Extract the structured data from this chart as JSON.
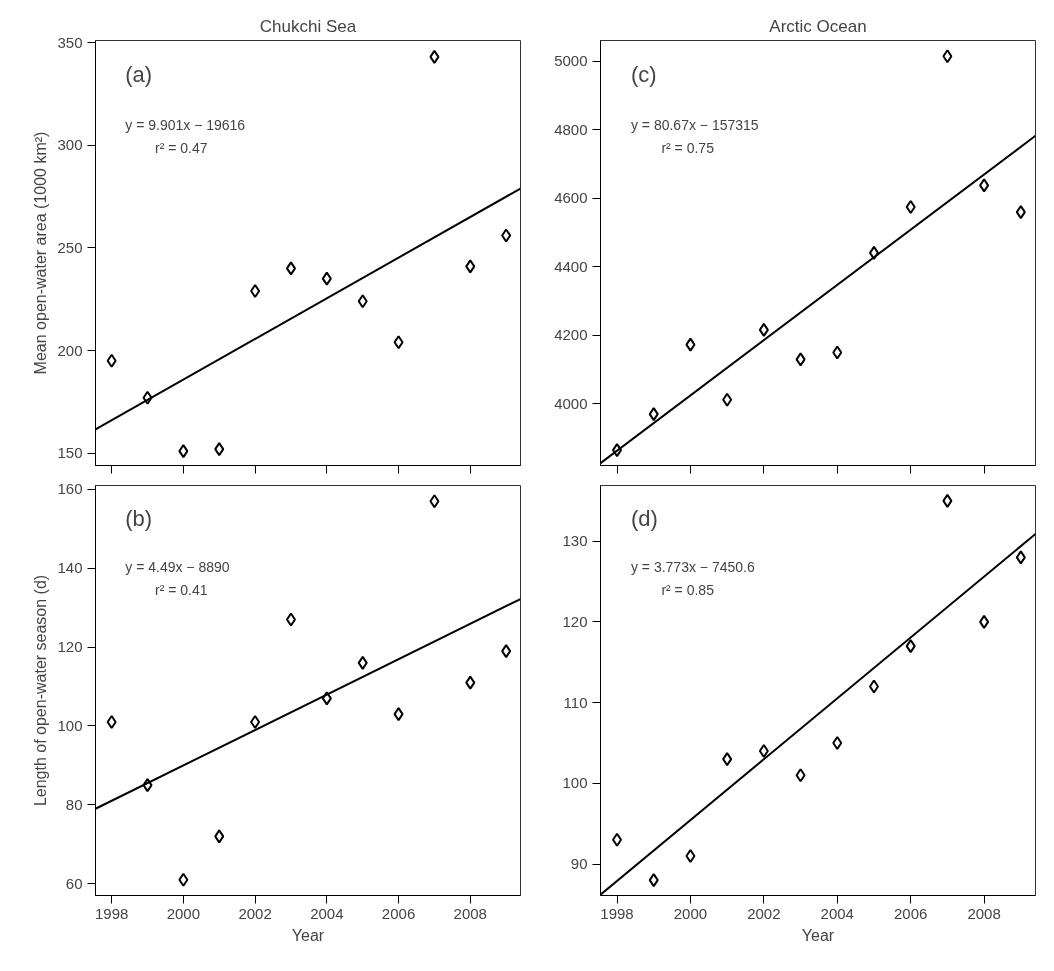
{
  "chart_data": [
    {
      "type": "scatter",
      "title": "Chukchi Sea",
      "ylabel": "Mean open-water area (1000 km²)",
      "xlim": [
        1997.55,
        2009.4
      ],
      "xticks": [
        1998,
        2000,
        2002,
        2004,
        2006,
        2008
      ],
      "ylim": [
        144,
        351
      ],
      "yticks": [
        150,
        200,
        250,
        300,
        350
      ],
      "tick_labels": "y",
      "grid": false,
      "annotations": [
        "(a)",
        "y = 9.901x − 19616",
        "r² = 0.47"
      ],
      "series": [
        {
          "marker": "diamond",
          "color": "#000000",
          "x": [
            1998,
            1999,
            2000,
            2001,
            2002,
            2003,
            2004,
            2005,
            2006,
            2007,
            2008,
            2009
          ],
          "values": [
            195,
            177,
            151,
            152,
            229,
            240,
            235,
            224,
            204,
            343,
            241,
            256
          ]
        },
        {
          "type": "line",
          "color": "#000000",
          "x": [
            1997.55,
            2009.4
          ],
          "values": [
            161.6,
            278.9
          ]
        }
      ]
    },
    {
      "type": "scatter",
      "title": "Arctic Ocean",
      "xlim": [
        1997.55,
        2009.4
      ],
      "xticks": [
        1998,
        2000,
        2002,
        2004,
        2006,
        2008
      ],
      "ylim": [
        3820,
        5061
      ],
      "yticks": [
        4000,
        4200,
        4400,
        4600,
        4800,
        5000
      ],
      "tick_labels": "y",
      "grid": false,
      "annotations": [
        "(c)",
        "y = 80.67x − 157315",
        "r² = 0.75"
      ],
      "series": [
        {
          "marker": "diamond",
          "color": "#000000",
          "x": [
            1998,
            1999,
            2000,
            2001,
            2002,
            2003,
            2004,
            2005,
            2006,
            2007,
            2008,
            2009
          ],
          "values": [
            3865,
            3970,
            4173,
            4012,
            4216,
            4130,
            4150,
            4441,
            4575,
            5015,
            4638,
            4560
          ]
        },
        {
          "type": "line",
          "color": "#000000",
          "x": [
            1997.55,
            2009.4
          ],
          "values": [
            3827,
            4783
          ]
        }
      ]
    },
    {
      "type": "scatter",
      "xlabel": "Year",
      "ylabel": "Length of open-water season (d)",
      "xlim": [
        1997.55,
        2009.4
      ],
      "xticks": [
        1998,
        2000,
        2002,
        2004,
        2006,
        2008
      ],
      "ylim": [
        57,
        161
      ],
      "yticks": [
        60,
        80,
        100,
        120,
        140,
        160
      ],
      "grid": false,
      "annotations": [
        "(b)",
        "y = 4.49x − 8890",
        "r² = 0.41"
      ],
      "series": [
        {
          "marker": "diamond",
          "color": "#000000",
          "x": [
            1998,
            1999,
            2000,
            2001,
            2002,
            2003,
            2004,
            2005,
            2006,
            2007,
            2008,
            2009
          ],
          "values": [
            101,
            85,
            61,
            72,
            101,
            127,
            107,
            116,
            103,
            157,
            111,
            119
          ]
        },
        {
          "type": "line",
          "color": "#000000",
          "x": [
            1997.55,
            2009.4
          ],
          "values": [
            79.0,
            132.2
          ]
        }
      ]
    },
    {
      "type": "scatter",
      "xlabel": "Year",
      "xlim": [
        1997.55,
        2009.4
      ],
      "xticks": [
        1998,
        2000,
        2002,
        2004,
        2006,
        2008
      ],
      "ylim": [
        86.1,
        136.9
      ],
      "yticks": [
        90,
        100,
        110,
        120,
        130
      ],
      "grid": false,
      "annotations": [
        "(d)",
        "y = 3.773x − 7450.6",
        "r² = 0.85"
      ],
      "series": [
        {
          "marker": "diamond",
          "color": "#000000",
          "x": [
            1998,
            1999,
            2000,
            2001,
            2002,
            2003,
            2004,
            2005,
            2006,
            2007,
            2008,
            2009
          ],
          "values": [
            93,
            88,
            91,
            103,
            104,
            101,
            105,
            112,
            117,
            135,
            120,
            128
          ]
        },
        {
          "type": "line",
          "color": "#000000",
          "x": [
            1997.55,
            2009.4
          ],
          "values": [
            86.2,
            130.9
          ]
        }
      ]
    }
  ]
}
